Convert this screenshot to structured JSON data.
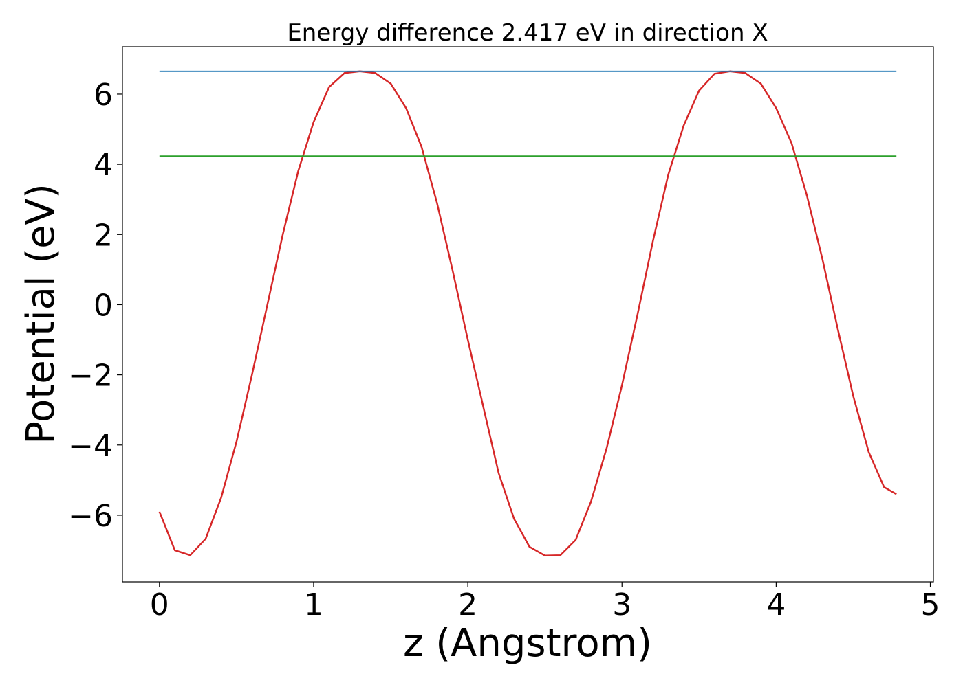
{
  "chart_data": {
    "type": "line",
    "title": "Energy difference 2.417 eV in direction X",
    "xlabel": "z (Angstrom)",
    "ylabel": "Potential (eV)",
    "xlim": [
      -0.24,
      5.02
    ],
    "ylim": [
      -7.9,
      7.35
    ],
    "xticks": [
      0,
      1,
      2,
      3,
      4,
      5
    ],
    "xtick_labels": [
      "0",
      "1",
      "2",
      "3",
      "4",
      "5"
    ],
    "yticks": [
      -6,
      -4,
      -2,
      0,
      2,
      4,
      6
    ],
    "ytick_labels": [
      "−6",
      "−4",
      "−2",
      "0",
      "2",
      "4",
      "6"
    ],
    "grid": false,
    "legend": "none",
    "series": [
      {
        "color": "#d62728",
        "x": [
          0,
          0.1,
          0.2,
          0.3,
          0.4,
          0.5,
          0.6,
          0.7,
          0.8,
          0.9,
          1.0,
          1.1,
          1.2,
          1.3,
          1.4,
          1.5,
          1.6,
          1.7,
          1.8,
          1.9,
          2.0,
          2.1,
          2.2,
          2.3,
          2.4,
          2.5,
          2.6,
          2.7,
          2.8,
          2.9,
          3.0,
          3.1,
          3.2,
          3.3,
          3.4,
          3.5,
          3.6,
          3.7,
          3.8,
          3.9,
          4.0,
          4.1,
          4.2,
          4.3,
          4.4,
          4.5,
          4.6,
          4.7,
          4.78
        ],
        "y": [
          -5.9,
          -7.0,
          -7.14,
          -6.67,
          -5.5,
          -3.9,
          -2.0,
          0.0,
          2.0,
          3.8,
          5.2,
          6.2,
          6.6,
          6.65,
          6.6,
          6.3,
          5.6,
          4.5,
          2.9,
          1.0,
          -1.0,
          -2.9,
          -4.8,
          -6.1,
          -6.9,
          -7.15,
          -7.14,
          -6.7,
          -5.6,
          -4.1,
          -2.3,
          -0.3,
          1.8,
          3.7,
          5.1,
          6.1,
          6.58,
          6.65,
          6.6,
          6.3,
          5.6,
          4.6,
          3.1,
          1.3,
          -0.7,
          -2.6,
          -4.2,
          -5.2,
          -5.4
        ]
      },
      {
        "color": "#1f77b4",
        "x": [
          0,
          4.78
        ],
        "y": [
          6.65,
          6.65
        ]
      },
      {
        "color": "#2ca02c",
        "x": [
          0,
          4.78
        ],
        "y": [
          4.233,
          4.233
        ]
      }
    ]
  }
}
